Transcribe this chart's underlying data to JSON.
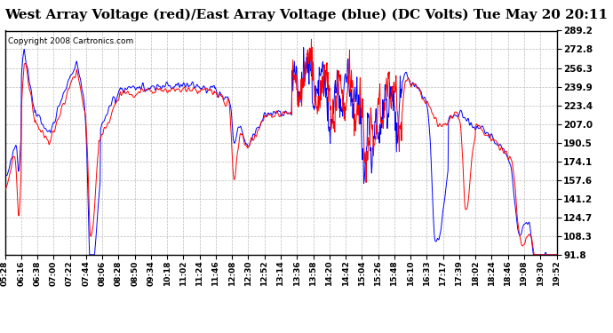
{
  "title": "West Array Voltage (red)/East Array Voltage (blue) (DC Volts) Tue May 20 20:11",
  "copyright": "Copyright 2008 Cartronics.com",
  "title_fontsize": 11,
  "background_color": "#ffffff",
  "plot_bg_color": "#ffffff",
  "grid_color": "#aaaaaa",
  "ylim": [
    91.8,
    289.2
  ],
  "yticks": [
    91.8,
    108.3,
    124.7,
    141.2,
    157.6,
    174.1,
    190.5,
    207.0,
    223.4,
    239.9,
    256.3,
    272.8,
    289.2
  ],
  "xtick_labels": [
    "05:28",
    "06:16",
    "06:38",
    "07:00",
    "07:22",
    "07:44",
    "08:06",
    "08:28",
    "08:50",
    "09:34",
    "10:18",
    "11:02",
    "11:24",
    "11:46",
    "12:08",
    "12:30",
    "12:52",
    "13:14",
    "13:36",
    "13:58",
    "14:20",
    "14:42",
    "15:04",
    "15:26",
    "15:48",
    "16:10",
    "16:33",
    "17:17",
    "17:39",
    "18:02",
    "18:24",
    "18:46",
    "19:08",
    "19:30",
    "19:52"
  ],
  "red_color": "#ff0000",
  "blue_color": "#0000ff",
  "linewidth": 0.7
}
